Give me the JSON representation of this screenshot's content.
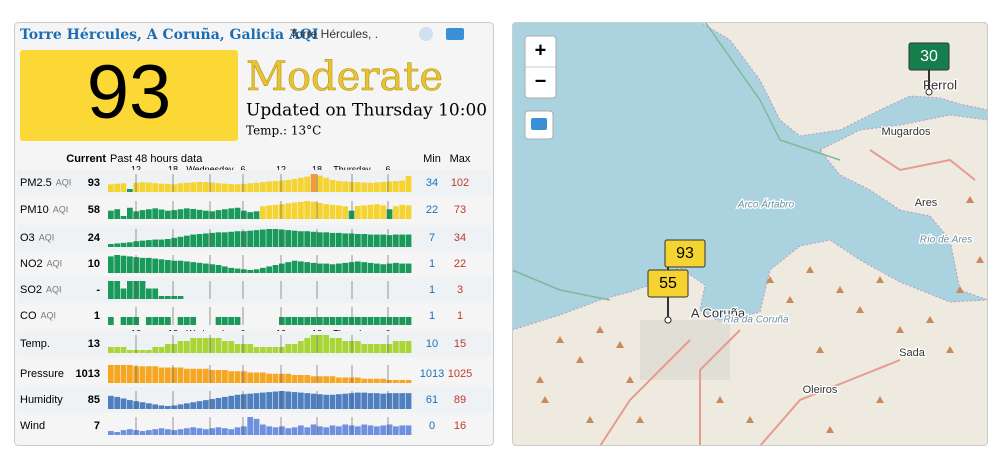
{
  "header": {
    "title": "Torre Hércules, A Coruña, Galicia AQI",
    "subtitle": "Torre Hércules, ."
  },
  "aqi": {
    "value": "93",
    "status": "Moderate",
    "updated": "Updated on Thursday 10:00",
    "temp": "Temp.: 13°C"
  },
  "table": {
    "col_current": "Current",
    "col_history": "Past 48 hours data",
    "col_min": "Min",
    "col_max": "Max",
    "hour_labels": [
      "12",
      "18",
      "Wednesday",
      "6",
      "12",
      "18",
      "Thursday",
      "6"
    ],
    "rows": [
      {
        "name": "PM2.5",
        "unit": "AQI",
        "current": 93,
        "min": 34,
        "max": 102,
        "scale": "aqi",
        "history": [
          55,
          58,
          60,
          34,
          62,
          65,
          63,
          60,
          58,
          57,
          55,
          60,
          62,
          64,
          66,
          65,
          63,
          60,
          58,
          56,
          55,
          57,
          60,
          62,
          65,
          68,
          70,
          72,
          75,
          80,
          85,
          90,
          102,
          95,
          85,
          75,
          70,
          68,
          66,
          65,
          63,
          62,
          64,
          66,
          68,
          70,
          72,
          93
        ]
      },
      {
        "name": "PM10",
        "unit": "AQI",
        "current": 58,
        "min": 22,
        "max": 73,
        "scale": "aqi",
        "history": [
          40,
          45,
          22,
          50,
          38,
          42,
          45,
          48,
          44,
          40,
          42,
          45,
          48,
          46,
          43,
          40,
          38,
          42,
          45,
          48,
          50,
          40,
          35,
          38,
          55,
          58,
          60,
          62,
          65,
          68,
          70,
          73,
          70,
          66,
          62,
          60,
          58,
          55,
          40,
          56,
          58,
          60,
          62,
          58,
          45,
          55,
          60,
          58
        ]
      },
      {
        "name": "O3",
        "unit": "AQI",
        "current": 24,
        "min": 7,
        "max": 34,
        "scale": "aqi",
        "history": [
          7,
          8,
          9,
          10,
          12,
          13,
          14,
          15,
          15,
          16,
          18,
          20,
          22,
          24,
          25,
          26,
          27,
          28,
          28,
          29,
          30,
          30,
          31,
          32,
          33,
          34,
          34,
          33,
          32,
          31,
          30,
          30,
          29,
          28,
          28,
          27,
          27,
          26,
          26,
          25,
          25,
          24,
          24,
          24,
          23,
          24,
          24,
          24
        ]
      },
      {
        "name": "NO2",
        "unit": "AQI",
        "current": 10,
        "min": 1,
        "max": 22,
        "scale": "aqi",
        "history": [
          20,
          22,
          21,
          20,
          19,
          18,
          18,
          17,
          16,
          15,
          14,
          14,
          13,
          12,
          11,
          10,
          9,
          8,
          6,
          4,
          3,
          2,
          1,
          2,
          4,
          6,
          8,
          10,
          12,
          14,
          13,
          12,
          11,
          10,
          10,
          9,
          10,
          11,
          12,
          13,
          12,
          11,
          10,
          9,
          10,
          11,
          10,
          10
        ]
      },
      {
        "name": "SO2",
        "unit": "AQI",
        "current": "-",
        "min": 1,
        "max": 3,
        "scale": "aqi",
        "history": [
          3,
          3,
          2,
          3,
          3,
          3,
          2,
          2,
          1,
          1,
          1,
          1,
          null,
          null,
          null,
          null,
          null,
          null,
          null,
          null,
          null,
          null,
          null,
          null,
          null,
          null,
          null,
          null,
          null,
          null,
          null,
          null,
          null,
          null,
          null,
          null,
          null,
          null,
          null,
          null,
          null,
          null,
          null,
          null,
          null,
          null,
          null,
          null
        ]
      },
      {
        "name": "CO",
        "unit": "AQI",
        "current": 1,
        "min": 1,
        "max": 1,
        "scale": "aqi",
        "history": [
          1,
          null,
          1,
          1,
          1,
          null,
          1,
          1,
          1,
          1,
          null,
          1,
          1,
          1,
          null,
          null,
          null,
          1,
          1,
          1,
          1,
          null,
          null,
          null,
          null,
          null,
          null,
          1,
          1,
          1,
          1,
          1,
          1,
          1,
          1,
          1,
          1,
          1,
          1,
          1,
          1,
          1,
          1,
          1,
          1,
          1,
          1,
          1
        ]
      },
      {
        "name": "Temp.",
        "current": 13,
        "min": 10,
        "max": 15,
        "color": "#a9d636",
        "history": [
          11,
          11,
          11,
          10,
          10,
          10,
          10,
          11,
          11,
          12,
          12,
          13,
          13,
          14,
          14,
          14,
          14,
          14,
          13,
          13,
          12,
          12,
          12,
          11,
          11,
          11,
          11,
          11,
          12,
          12,
          13,
          14,
          15,
          15,
          15,
          14,
          14,
          13,
          13,
          13,
          12,
          12,
          12,
          12,
          12,
          13,
          13,
          13
        ]
      },
      {
        "name": "Pressure",
        "current": 1013,
        "min": 1013,
        "max": 1025,
        "color": "#f5a623",
        "history": [
          1025,
          1025,
          1025,
          1025,
          1024,
          1024,
          1024,
          1024,
          1023,
          1023,
          1023,
          1023,
          1022,
          1022,
          1022,
          1022,
          1021,
          1021,
          1021,
          1020,
          1020,
          1020,
          1019,
          1019,
          1019,
          1018,
          1018,
          1018,
          1018,
          1017,
          1017,
          1017,
          1016,
          1016,
          1016,
          1016,
          1015,
          1015,
          1015,
          1015,
          1014,
          1014,
          1014,
          1014,
          1013,
          1013,
          1013,
          1013
        ]
      },
      {
        "name": "Humidity",
        "current": 85,
        "min": 61,
        "max": 89,
        "color": "#4f7fbf",
        "history": [
          80,
          78,
          75,
          72,
          70,
          68,
          66,
          64,
          62,
          61,
          62,
          64,
          66,
          68,
          70,
          72,
          74,
          76,
          78,
          80,
          82,
          83,
          84,
          85,
          86,
          87,
          88,
          89,
          88,
          87,
          86,
          85,
          84,
          83,
          82,
          82,
          83,
          84,
          85,
          86,
          86,
          85,
          85,
          84,
          85,
          85,
          85,
          85
        ]
      },
      {
        "name": "Wind",
        "current": 7,
        "min": 0,
        "max": 16,
        "color": "#6f8fe0",
        "history": [
          1,
          0,
          2,
          3,
          2,
          1,
          2,
          3,
          4,
          3,
          2,
          3,
          4,
          5,
          4,
          3,
          4,
          5,
          4,
          3,
          5,
          6,
          16,
          14,
          8,
          6,
          5,
          6,
          4,
          5,
          7,
          5,
          8,
          6,
          5,
          7,
          6,
          8,
          7,
          6,
          8,
          7,
          6,
          7,
          8,
          6,
          7,
          7
        ]
      }
    ]
  },
  "map": {
    "zoom_in": "+",
    "zoom_out": "−",
    "places": [
      "Ferrol",
      "Mugardos",
      "Ares",
      "Arco Ártabro",
      "Río de Ares",
      "A Coruña",
      "Ría da Coruña",
      "Sada",
      "Oleiros"
    ],
    "markers": [
      {
        "value": 93
      },
      {
        "value": 55
      },
      {
        "value": 30
      }
    ]
  }
}
